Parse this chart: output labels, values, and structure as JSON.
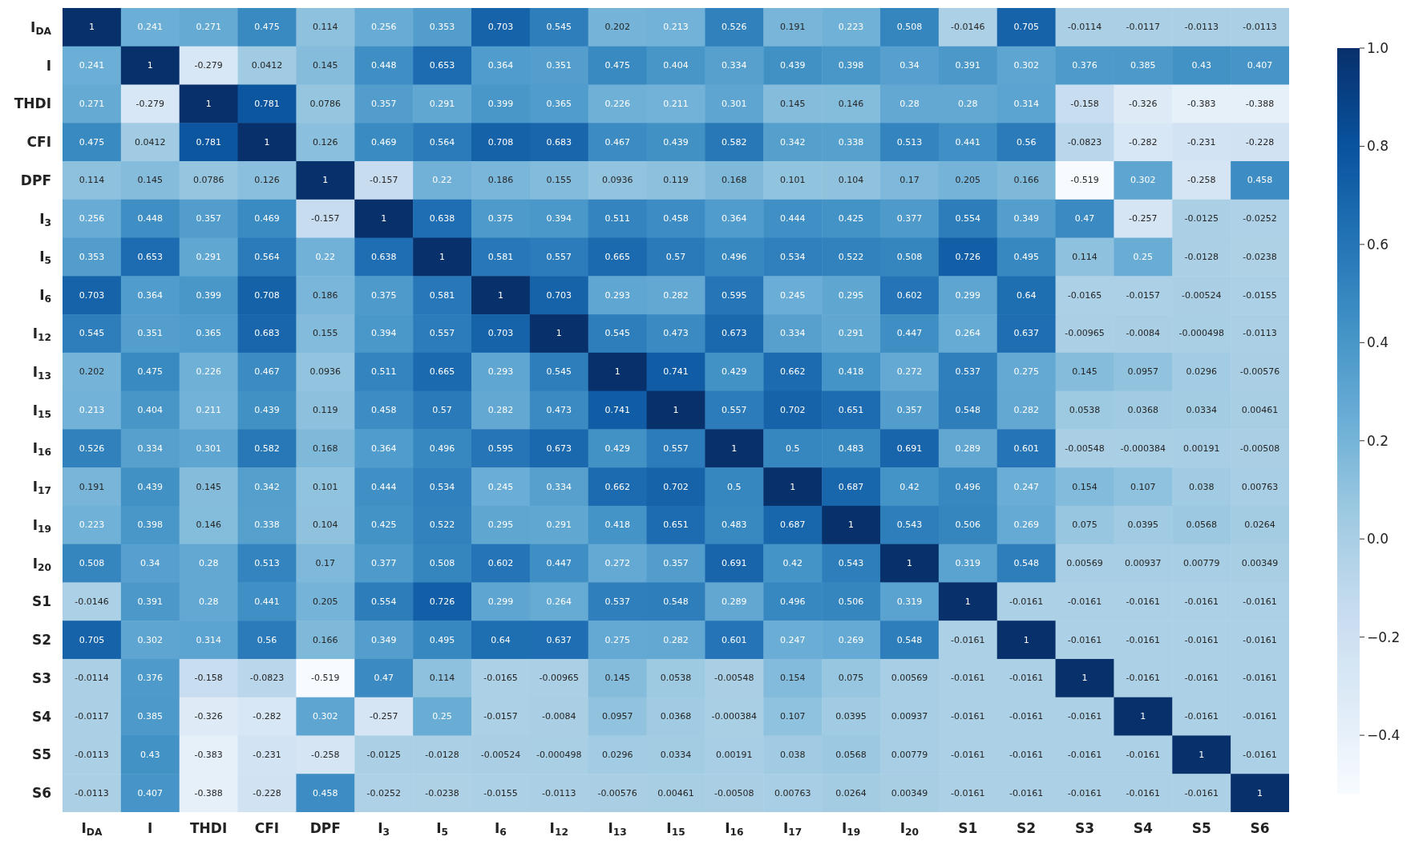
{
  "chart_data": {
    "type": "heatmap",
    "categories": [
      "I$_{DA}$",
      "I",
      "THDI",
      "CFI",
      "DPF",
      "I$_{3}$",
      "I$_{5}$",
      "I$_{6}$",
      "I$_{12}$",
      "I$_{13}$",
      "I$_{15}$",
      "I$_{16}$",
      "I$_{17}$",
      "I$_{19}$",
      "I$_{20}$",
      "S1",
      "S2",
      "S3",
      "S4",
      "S5",
      "S6"
    ],
    "y_categories": [
      "I$_{DA}$",
      "I",
      "THDI",
      "CFI",
      "DPF",
      "I$_{3}$",
      "I$_{5}$",
      "I$_{6}$",
      "I$_{12}$",
      "I$_{13}$",
      "I$_{15}$",
      "I$_{16}$",
      "I$_{17}$",
      "I$_{19}$",
      "I$_{20}$",
      "S1",
      "S2",
      "S3",
      "S4",
      "S5",
      "S6"
    ],
    "cells": [
      [
        1,
        0.241,
        0.271,
        0.475,
        0.114,
        0.256,
        0.353,
        0.703,
        0.545,
        0.202,
        0.213,
        0.526,
        0.191,
        0.223,
        0.508,
        -0.0146,
        0.705,
        -0.0114,
        -0.0117,
        -0.0113,
        -0.0113
      ],
      [
        0.241,
        1,
        -0.279,
        0.0412,
        0.145,
        0.448,
        0.653,
        0.364,
        0.351,
        0.475,
        0.404,
        0.334,
        0.439,
        0.398,
        0.34,
        0.391,
        0.302,
        0.376,
        0.385,
        0.43,
        0.407
      ],
      [
        0.271,
        -0.279,
        1,
        0.781,
        0.0786,
        0.357,
        0.291,
        0.399,
        0.365,
        0.226,
        0.211,
        0.301,
        0.145,
        0.146,
        0.28,
        0.28,
        0.314,
        -0.158,
        -0.326,
        -0.383,
        -0.388
      ],
      [
        0.475,
        0.0412,
        0.781,
        1,
        0.126,
        0.469,
        0.564,
        0.708,
        0.683,
        0.467,
        0.439,
        0.582,
        0.342,
        0.338,
        0.513,
        0.441,
        0.56,
        -0.0823,
        -0.282,
        -0.231,
        -0.228
      ],
      [
        0.114,
        0.145,
        0.0786,
        0.126,
        1,
        -0.157,
        0.22,
        0.186,
        0.155,
        0.0936,
        0.119,
        0.168,
        0.101,
        0.104,
        0.17,
        0.205,
        0.166,
        -0.519,
        0.302,
        -0.258,
        0.458
      ],
      [
        0.256,
        0.448,
        0.357,
        0.469,
        -0.157,
        1,
        0.638,
        0.375,
        0.394,
        0.511,
        0.458,
        0.364,
        0.444,
        0.425,
        0.377,
        0.554,
        0.349,
        0.47,
        -0.257,
        -0.0125,
        -0.0252
      ],
      [
        0.353,
        0.653,
        0.291,
        0.564,
        0.22,
        0.638,
        1,
        0.581,
        0.557,
        0.665,
        0.57,
        0.496,
        0.534,
        0.522,
        0.508,
        0.726,
        0.495,
        0.114,
        0.25,
        -0.0128,
        -0.0238
      ],
      [
        0.703,
        0.364,
        0.399,
        0.708,
        0.186,
        0.375,
        0.581,
        1,
        0.703,
        0.293,
        0.282,
        0.595,
        0.245,
        0.295,
        0.602,
        0.299,
        0.64,
        -0.0165,
        -0.0157,
        -0.00524,
        -0.0155
      ],
      [
        0.545,
        0.351,
        0.365,
        0.683,
        0.155,
        0.394,
        0.557,
        0.703,
        1,
        0.545,
        0.473,
        0.673,
        0.334,
        0.291,
        0.447,
        0.264,
        0.637,
        -0.00965,
        -0.0084,
        -0.000498,
        -0.0113
      ],
      [
        0.202,
        0.475,
        0.226,
        0.467,
        0.0936,
        0.511,
        0.665,
        0.293,
        0.545,
        1,
        0.741,
        0.429,
        0.662,
        0.418,
        0.272,
        0.537,
        0.275,
        0.145,
        0.0957,
        0.0296,
        -0.00576
      ],
      [
        0.213,
        0.404,
        0.211,
        0.439,
        0.119,
        0.458,
        0.57,
        0.282,
        0.473,
        0.741,
        1,
        0.557,
        0.702,
        0.651,
        0.357,
        0.548,
        0.282,
        0.0538,
        0.0368,
        0.0334,
        0.00461
      ],
      [
        0.526,
        0.334,
        0.301,
        0.582,
        0.168,
        0.364,
        0.496,
        0.595,
        0.673,
        0.429,
        0.557,
        1,
        0.5,
        0.483,
        0.691,
        0.289,
        0.601,
        -0.00548,
        -0.000384,
        0.00191,
        -0.00508
      ],
      [
        0.191,
        0.439,
        0.145,
        0.342,
        0.101,
        0.444,
        0.534,
        0.245,
        0.334,
        0.662,
        0.702,
        0.5,
        1,
        0.687,
        0.42,
        0.496,
        0.247,
        0.154,
        0.107,
        0.038,
        0.00763
      ],
      [
        0.223,
        0.398,
        0.146,
        0.338,
        0.104,
        0.425,
        0.522,
        0.295,
        0.291,
        0.418,
        0.651,
        0.483,
        0.687,
        1,
        0.543,
        0.506,
        0.269,
        0.075,
        0.0395,
        0.0568,
        0.0264
      ],
      [
        0.508,
        0.34,
        0.28,
        0.513,
        0.17,
        0.377,
        0.508,
        0.602,
        0.447,
        0.272,
        0.357,
        0.691,
        0.42,
        0.543,
        1,
        0.319,
        0.548,
        0.00569,
        0.00937,
        0.00779,
        0.00349
      ],
      [
        -0.0146,
        0.391,
        0.28,
        0.441,
        0.205,
        0.554,
        0.726,
        0.299,
        0.264,
        0.537,
        0.548,
        0.289,
        0.496,
        0.506,
        0.319,
        1,
        -0.0161,
        -0.0161,
        -0.0161,
        -0.0161,
        -0.0161
      ],
      [
        0.705,
        0.302,
        0.314,
        0.56,
        0.166,
        0.349,
        0.495,
        0.64,
        0.637,
        0.275,
        0.282,
        0.601,
        0.247,
        0.269,
        0.548,
        -0.0161,
        1,
        -0.0161,
        -0.0161,
        -0.0161,
        -0.0161
      ],
      [
        -0.0114,
        0.376,
        -0.158,
        -0.0823,
        -0.519,
        0.47,
        0.114,
        -0.0165,
        -0.00965,
        0.145,
        0.0538,
        -0.00548,
        0.154,
        0.075,
        0.00569,
        -0.0161,
        -0.0161,
        1,
        -0.0161,
        -0.0161,
        -0.0161
      ],
      [
        -0.0117,
        0.385,
        -0.326,
        -0.282,
        0.302,
        -0.257,
        0.25,
        -0.0157,
        -0.0084,
        0.0957,
        0.0368,
        -0.000384,
        0.107,
        0.0395,
        0.00937,
        -0.0161,
        -0.0161,
        -0.0161,
        1,
        -0.0161,
        -0.0161
      ],
      [
        -0.0113,
        0.43,
        -0.383,
        -0.231,
        -0.258,
        -0.0125,
        -0.0128,
        -0.00524,
        -0.000498,
        0.0296,
        0.0334,
        0.00191,
        0.038,
        0.0568,
        0.00779,
        -0.0161,
        -0.0161,
        -0.0161,
        -0.0161,
        1,
        -0.0161
      ],
      [
        -0.0113,
        0.407,
        -0.388,
        -0.228,
        0.458,
        -0.0252,
        -0.0238,
        -0.0155,
        -0.0113,
        -0.00576,
        0.00461,
        -0.00508,
        0.00763,
        0.0264,
        0.00349,
        -0.0161,
        -0.0161,
        -0.0161,
        -0.0161,
        -0.0161,
        1
      ]
    ],
    "clim": [
      -0.519,
      1
    ],
    "cticks": [
      {
        "value": -0.4,
        "label": "−0.4"
      },
      {
        "value": -0.2,
        "label": "−0.2"
      },
      {
        "value": 0,
        "label": "0.0"
      },
      0.2,
      0.4,
      0.6,
      0.8,
      {
        "value": 1,
        "label": "1.0"
      }
    ],
    "data_labels": true
  }
}
